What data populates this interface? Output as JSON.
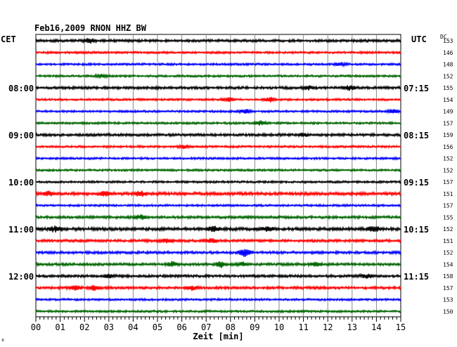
{
  "header": {
    "title": "Feb16,2009   RNON HHZ BW",
    "left_zone": "CET",
    "right_zone": "UTC",
    "dc_label": "DC",
    "corner_mark": "x"
  },
  "chart_data": {
    "type": "line",
    "title": "Feb16,2009   RNON HHZ BW",
    "xlabel": "Zeit [min]",
    "xlim": [
      0,
      15
    ],
    "x_ticks": [
      "00",
      "01",
      "02",
      "03",
      "04",
      "05",
      "06",
      "07",
      "08",
      "09",
      "10",
      "11",
      "12",
      "13",
      "14",
      "15"
    ],
    "grid": true,
    "left_time_labels": [
      {
        "row": 4,
        "label": "08:00"
      },
      {
        "row": 8,
        "label": "09:00"
      },
      {
        "row": 12,
        "label": "10:00"
      },
      {
        "row": 16,
        "label": "11:00"
      },
      {
        "row": 20,
        "label": "12:00"
      }
    ],
    "right_time_labels": [
      {
        "row": 4,
        "label": "07:15"
      },
      {
        "row": 8,
        "label": "08:15"
      },
      {
        "row": 12,
        "label": "09:15"
      },
      {
        "row": 16,
        "label": "10:15"
      },
      {
        "row": 20,
        "label": "11:15"
      }
    ],
    "trace_colors": [
      "#000000",
      "#ff0000",
      "#0000ff",
      "#006600"
    ],
    "dc_offsets": [
      153,
      146,
      148,
      152,
      155,
      154,
      149,
      157,
      159,
      156,
      152,
      152,
      157,
      151,
      157,
      155,
      152,
      151,
      152,
      154,
      158,
      157,
      153,
      150
    ],
    "traces": [
      {
        "row": 0,
        "amplitude": 2.5,
        "events": [
          {
            "t": 2.2,
            "amp": 3.5
          }
        ]
      },
      {
        "row": 1,
        "amplitude": 2.0,
        "events": []
      },
      {
        "row": 2,
        "amplitude": 2.0,
        "events": [
          {
            "t": 12.5,
            "amp": 3
          }
        ]
      },
      {
        "row": 3,
        "amplitude": 2.0,
        "events": [
          {
            "t": 2.7,
            "amp": 3
          }
        ]
      },
      {
        "row": 4,
        "amplitude": 2.5,
        "events": [
          {
            "t": 11.2,
            "amp": 3.5
          },
          {
            "t": 12.9,
            "amp": 3.5
          }
        ]
      },
      {
        "row": 5,
        "amplitude": 2.0,
        "events": [
          {
            "t": 7.9,
            "amp": 4
          },
          {
            "t": 9.6,
            "amp": 4.5
          }
        ]
      },
      {
        "row": 6,
        "amplitude": 2.0,
        "events": [
          {
            "t": 8.6,
            "amp": 4
          },
          {
            "t": 14.7,
            "amp": 3.5
          }
        ]
      },
      {
        "row": 7,
        "amplitude": 2.0,
        "events": [
          {
            "t": 9.2,
            "amp": 3.5
          }
        ]
      },
      {
        "row": 8,
        "amplitude": 2.5,
        "events": [
          {
            "t": 11.0,
            "amp": 3
          }
        ]
      },
      {
        "row": 9,
        "amplitude": 2.0,
        "events": [
          {
            "t": 6.1,
            "amp": 3
          }
        ]
      },
      {
        "row": 10,
        "amplitude": 2.0,
        "events": []
      },
      {
        "row": 11,
        "amplitude": 2.0,
        "events": []
      },
      {
        "row": 12,
        "amplitude": 2.0,
        "events": []
      },
      {
        "row": 13,
        "amplitude": 3.0,
        "events": [
          {
            "t": 0.5,
            "amp": 4
          },
          {
            "t": 2.8,
            "amp": 4
          },
          {
            "t": 4.3,
            "amp": 4
          }
        ]
      },
      {
        "row": 14,
        "amplitude": 2.0,
        "events": []
      },
      {
        "row": 15,
        "amplitude": 2.5,
        "events": [
          {
            "t": 4.3,
            "amp": 4
          }
        ]
      },
      {
        "row": 16,
        "amplitude": 3.0,
        "events": [
          {
            "t": 0.8,
            "amp": 5
          },
          {
            "t": 7.3,
            "amp": 4.5
          },
          {
            "t": 9.5,
            "amp": 4
          },
          {
            "t": 13.9,
            "amp": 5
          }
        ]
      },
      {
        "row": 17,
        "amplitude": 2.5,
        "events": [
          {
            "t": 5.4,
            "amp": 4
          },
          {
            "t": 7.2,
            "amp": 4
          }
        ]
      },
      {
        "row": 18,
        "amplitude": 2.5,
        "events": [
          {
            "t": 8.6,
            "amp": 8
          }
        ]
      },
      {
        "row": 19,
        "amplitude": 2.5,
        "events": [
          {
            "t": 5.6,
            "amp": 4
          },
          {
            "t": 7.6,
            "amp": 5
          },
          {
            "t": 8.5,
            "amp": 4
          },
          {
            "t": 11.5,
            "amp": 3.5
          }
        ]
      },
      {
        "row": 20,
        "amplitude": 2.5,
        "events": [
          {
            "t": 3.0,
            "amp": 3.5
          },
          {
            "t": 13.6,
            "amp": 3.5
          }
        ]
      },
      {
        "row": 21,
        "amplitude": 2.5,
        "events": [
          {
            "t": 1.6,
            "amp": 4
          },
          {
            "t": 2.4,
            "amp": 4.5
          },
          {
            "t": 6.4,
            "amp": 3.5
          }
        ]
      },
      {
        "row": 22,
        "amplitude": 2.0,
        "events": []
      },
      {
        "row": 23,
        "amplitude": 2.0,
        "events": []
      }
    ]
  }
}
